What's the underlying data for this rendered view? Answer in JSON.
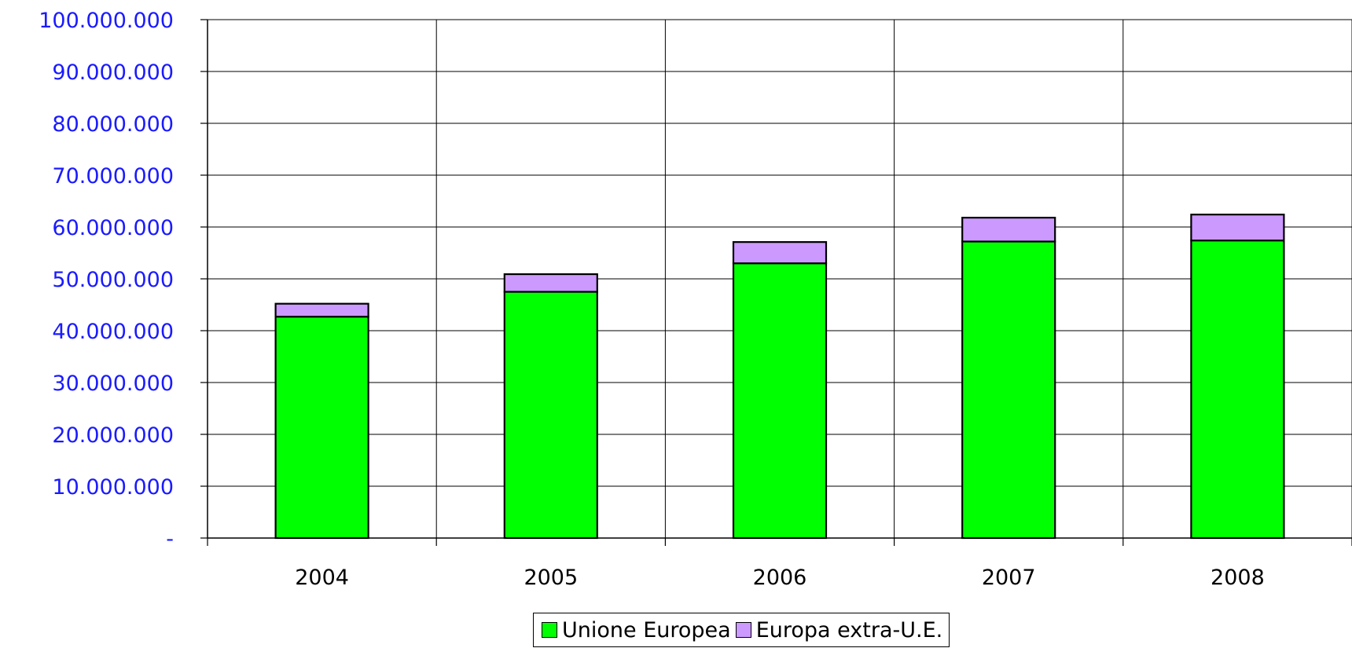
{
  "chart_data": {
    "type": "bar",
    "stacked": true,
    "categories": [
      "2004",
      "2005",
      "2006",
      "2007",
      "2008"
    ],
    "series": [
      {
        "name": "Unione Europea",
        "color": "#00ff00",
        "values": [
          42700000,
          47500000,
          53000000,
          57200000,
          57400000
        ]
      },
      {
        "name": "Europa extra-U.E.",
        "color": "#cc99ff",
        "values": [
          2500000,
          3400000,
          4100000,
          4600000,
          5000000
        ]
      }
    ],
    "ylim": [
      0,
      100000000
    ],
    "yticks": [
      {
        "value": 0,
        "label": "-"
      },
      {
        "value": 10000000,
        "label": "10.000.000"
      },
      {
        "value": 20000000,
        "label": "20.000.000"
      },
      {
        "value": 30000000,
        "label": "30.000.000"
      },
      {
        "value": 40000000,
        "label": "40.000.000"
      },
      {
        "value": 50000000,
        "label": "50.000.000"
      },
      {
        "value": 60000000,
        "label": "60.000.000"
      },
      {
        "value": 70000000,
        "label": "70.000.000"
      },
      {
        "value": 80000000,
        "label": "80.000.000"
      },
      {
        "value": 90000000,
        "label": "90.000.000"
      },
      {
        "value": 100000000,
        "label": "100.000.000"
      }
    ],
    "title": "",
    "xlabel": "",
    "ylabel": "",
    "grid": true,
    "legend": "bottom-center"
  }
}
